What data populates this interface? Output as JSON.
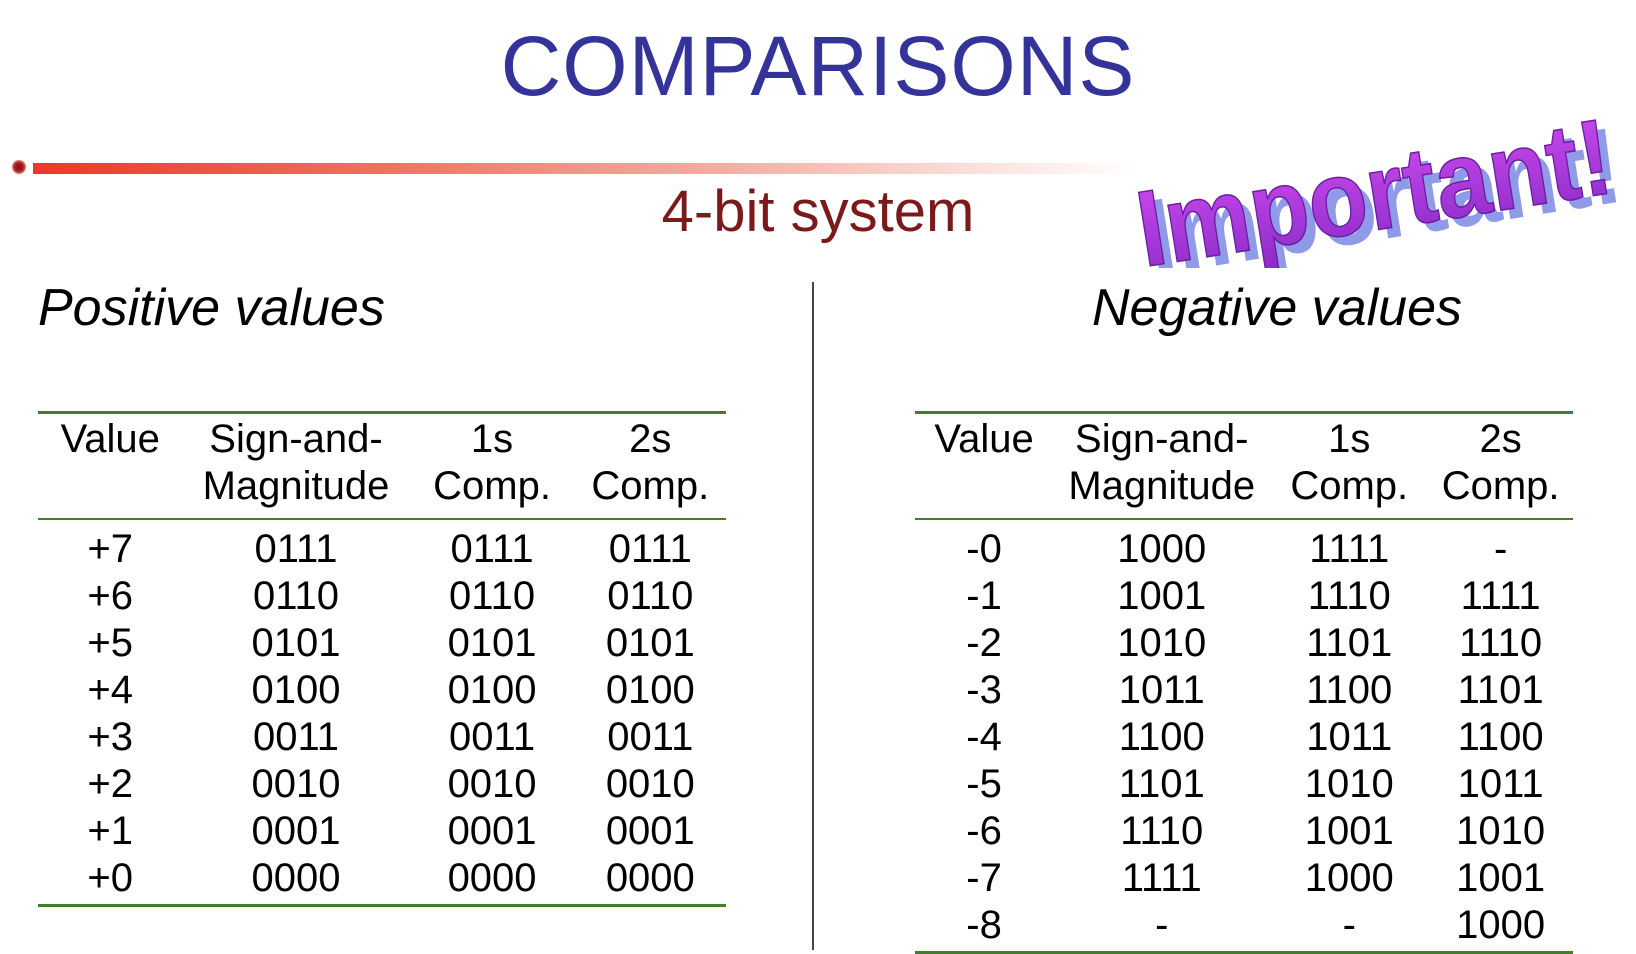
{
  "title": "COMPARISONS",
  "subtitle": "4-bit system",
  "stamp": {
    "text": "Important!",
    "color_top": "#cc44ee",
    "color_bottom": "#8a2bc8",
    "shadow": "#8f9ae8"
  },
  "positive": {
    "heading": "Positive values",
    "columns": [
      "Value",
      "Sign-and-\nMagnitude",
      "1s\nComp.",
      "2s\nComp."
    ],
    "rows": [
      [
        "+7",
        "0111",
        "0111",
        "0111"
      ],
      [
        "+6",
        "0110",
        "0110",
        "0110"
      ],
      [
        "+5",
        "0101",
        "0101",
        "0101"
      ],
      [
        "+4",
        "0100",
        "0100",
        "0100"
      ],
      [
        "+3",
        "0011",
        "0011",
        "0011"
      ],
      [
        "+2",
        "0010",
        "0010",
        "0010"
      ],
      [
        "+1",
        "0001",
        "0001",
        "0001"
      ],
      [
        "+0",
        "0000",
        "0000",
        "0000"
      ]
    ]
  },
  "negative": {
    "heading": "Negative values",
    "columns": [
      "Value",
      "Sign-and-\nMagnitude",
      "1s\nComp.",
      "2s\nComp."
    ],
    "rows": [
      [
        "-0",
        "1000",
        "1111",
        "-"
      ],
      [
        "-1",
        "1001",
        "1110",
        "1111"
      ],
      [
        "-2",
        "1010",
        "1101",
        "1110"
      ],
      [
        "-3",
        "1011",
        "1100",
        "1101"
      ],
      [
        "-4",
        "1100",
        "1011",
        "1100"
      ],
      [
        "-5",
        "1101",
        "1010",
        "1011"
      ],
      [
        "-6",
        "1110",
        "1001",
        "1010"
      ],
      [
        "-7",
        "1111",
        "1000",
        "1001"
      ],
      [
        "-8",
        "-",
        "-",
        "1000"
      ]
    ]
  },
  "colors": {
    "title": "#333399",
    "subtitle": "#7a1a1a",
    "table_rule": "#3f7f2a",
    "accent_rule": "#e83a25"
  }
}
